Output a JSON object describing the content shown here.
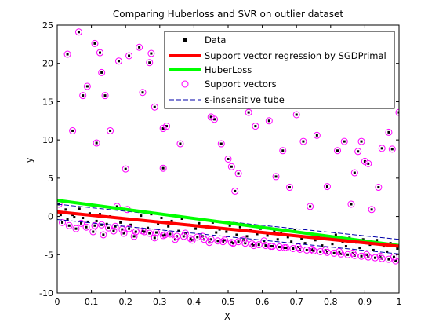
{
  "chart_data": {
    "type": "scatter",
    "title": "Comparing Huberloss and SVR on outlier dataset",
    "xlabel": "X",
    "ylabel": "y",
    "xlim": [
      0,
      1
    ],
    "ylim": [
      -10,
      25
    ],
    "xticks": [
      0,
      0.1,
      0.2,
      0.3,
      0.4,
      0.5,
      0.6,
      0.7,
      0.8,
      0.9,
      1
    ],
    "xtick_labels": [
      "0",
      "0.1",
      "0.2",
      "0.3",
      "0.4",
      "0.5",
      "0.6",
      "0.7",
      "0.8",
      "0.9",
      "1"
    ],
    "yticks": [
      -10,
      -5,
      0,
      5,
      10,
      15,
      20,
      25
    ],
    "ytick_labels": [
      "-10",
      "-5",
      "0",
      "5",
      "10",
      "15",
      "20",
      "25"
    ],
    "grid": false,
    "legend_position": "top-right",
    "legend": [
      {
        "label": "Data",
        "marker": "dot",
        "color": "#000000"
      },
      {
        "label": "Support vector regression by SGDPrimal",
        "marker": "line",
        "color": "#ff0000"
      },
      {
        "label": "HuberLoss",
        "marker": "line",
        "color": "#00ff00"
      },
      {
        "label": "Support vectors",
        "marker": "circle",
        "color": "#ff00ff"
      },
      {
        "label": "ε-insensitive tube",
        "marker": "dashed",
        "color": "#0000aa"
      }
    ],
    "lines": {
      "svr": {
        "x": [
          0,
          1
        ],
        "y": [
          0.6,
          -3.9
        ],
        "color": "#ff0000"
      },
      "huber": {
        "x": [
          0,
          1
        ],
        "y": [
          2.1,
          -3.8
        ],
        "color": "#00ff00"
      },
      "tube_upper": {
        "x": [
          0,
          1
        ],
        "y": [
          1.6,
          -3.0
        ],
        "color": "#0000aa"
      },
      "tube_lower": {
        "x": [
          0,
          1
        ],
        "y": [
          -0.4,
          -4.9
        ],
        "color": "#0000aa"
      }
    },
    "outliers": {
      "x": [
        0.03,
        0.045,
        0.063,
        0.075,
        0.088,
        0.11,
        0.115,
        0.125,
        0.13,
        0.14,
        0.155,
        0.18,
        0.2,
        0.21,
        0.24,
        0.25,
        0.27,
        0.275,
        0.285,
        0.31,
        0.31,
        0.32,
        0.36,
        0.38,
        0.39,
        0.45,
        0.46,
        0.48,
        0.5,
        0.51,
        0.52,
        0.53,
        0.56,
        0.58,
        0.62,
        0.64,
        0.66,
        0.68,
        0.7,
        0.72,
        0.74,
        0.76,
        0.79,
        0.82,
        0.84,
        0.86,
        0.87,
        0.88,
        0.89,
        0.9,
        0.91,
        0.92,
        0.94,
        0.95,
        0.97,
        0.98,
        1.0
      ],
      "y": [
        21.2,
        11.2,
        24.1,
        15.8,
        17.0,
        22.6,
        9.6,
        21.4,
        18.8,
        15.8,
        11.2,
        20.3,
        6.2,
        21.0,
        22.1,
        16.2,
        20.1,
        21.3,
        14.3,
        11.5,
        6.3,
        11.8,
        9.5,
        19.8,
        20.6,
        13.0,
        12.7,
        9.5,
        7.5,
        6.5,
        3.3,
        5.6,
        13.6,
        11.8,
        12.5,
        5.2,
        8.6,
        3.8,
        13.3,
        9.8,
        1.3,
        10.6,
        3.9,
        8.6,
        9.8,
        1.6,
        5.7,
        8.5,
        9.8,
        7.2,
        6.9,
        0.9,
        3.8,
        8.9,
        11.0,
        8.8,
        13.6
      ]
    },
    "inliers": {
      "x": [
        0.005,
        0.015,
        0.025,
        0.035,
        0.045,
        0.055,
        0.065,
        0.075,
        0.085,
        0.095,
        0.105,
        0.115,
        0.125,
        0.135,
        0.145,
        0.155,
        0.165,
        0.175,
        0.185,
        0.195,
        0.205,
        0.215,
        0.225,
        0.235,
        0.245,
        0.255,
        0.265,
        0.275,
        0.285,
        0.295,
        0.305,
        0.315,
        0.325,
        0.335,
        0.345,
        0.355,
        0.365,
        0.375,
        0.385,
        0.395,
        0.405,
        0.415,
        0.425,
        0.435,
        0.445,
        0.455,
        0.465,
        0.475,
        0.485,
        0.495,
        0.505,
        0.515,
        0.525,
        0.535,
        0.545,
        0.555,
        0.565,
        0.575,
        0.585,
        0.595,
        0.605,
        0.615,
        0.625,
        0.635,
        0.645,
        0.655,
        0.665,
        0.675,
        0.685,
        0.695,
        0.705,
        0.715,
        0.725,
        0.735,
        0.745,
        0.755,
        0.765,
        0.775,
        0.785,
        0.795,
        0.805,
        0.815,
        0.825,
        0.835,
        0.845,
        0.855,
        0.865,
        0.875,
        0.885,
        0.895,
        0.905,
        0.915,
        0.925,
        0.935,
        0.945,
        0.955,
        0.965,
        0.975,
        0.985,
        0.995,
        0.01,
        0.03,
        0.05,
        0.07,
        0.09,
        0.11,
        0.13,
        0.15,
        0.17,
        0.19,
        0.21,
        0.23,
        0.25,
        0.27,
        0.29,
        0.31,
        0.33,
        0.35,
        0.37,
        0.39,
        0.41,
        0.43,
        0.45,
        0.47,
        0.49,
        0.51,
        0.53,
        0.55,
        0.57,
        0.59,
        0.61,
        0.63,
        0.65,
        0.67,
        0.69,
        0.71,
        0.73,
        0.75,
        0.77,
        0.79,
        0.81,
        0.83,
        0.85,
        0.87,
        0.89,
        0.91,
        0.93,
        0.95,
        0.97,
        0.99
      ],
      "y": [
        1.6,
        -0.8,
        0.9,
        -1.2,
        0.2,
        -1.6,
        1.0,
        -0.2,
        -1.4,
        0.4,
        -2.0,
        -0.6,
        0.3,
        -2.4,
        -1.0,
        0.0,
        -1.9,
        1.3,
        -0.8,
        -2.2,
        0.9,
        -1.1,
        -2.6,
        -0.5,
        0.1,
        -2.0,
        -1.5,
        0.3,
        -2.8,
        -1.0,
        -0.2,
        -2.4,
        -1.3,
        -0.6,
        -3.0,
        -1.9,
        -0.3,
        -2.2,
        -1.1,
        -3.1,
        -1.6,
        -0.9,
        -2.6,
        -1.4,
        -3.4,
        -0.8,
        -2.1,
        -1.7,
        -3.3,
        -2.0,
        -1.2,
        -3.5,
        -2.4,
        -1.4,
        -3.1,
        -2.6,
        -1.8,
        -3.8,
        -2.3,
        -1.6,
        -3.2,
        -2.5,
        -3.9,
        -1.9,
        -3.0,
        -2.2,
        -4.1,
        -2.7,
        -3.3,
        -1.8,
        -4.0,
        -2.9,
        -3.5,
        -2.2,
        -4.3,
        -3.1,
        -2.5,
        -3.8,
        -4.4,
        -2.9,
        -3.6,
        -2.4,
        -4.6,
        -3.3,
        -3.9,
        -2.8,
        -4.8,
        -3.4,
        -4.1,
        -3.0,
        -5.0,
        -3.7,
        -4.4,
        -3.1,
        -5.2,
        -3.9,
        -4.6,
        -3.5,
        -5.3,
        -4.2,
        0.2,
        -0.4,
        -0.1,
        -0.9,
        -0.7,
        -1.2,
        -1.1,
        -1.5,
        -1.3,
        -1.7,
        -1.6,
        -2.0,
        -1.9,
        -2.2,
        -2.1,
        -2.5,
        -2.3,
        -2.6,
        -2.6,
        -2.9,
        -2.7,
        -3.0,
        -3.0,
        -3.2,
        -3.1,
        -3.4,
        -3.3,
        -3.5,
        -3.6,
        -3.7,
        -3.8,
        -3.9,
        -4.0,
        -4.1,
        -4.2,
        -4.3,
        -4.4,
        -4.5,
        -4.6,
        -4.7,
        -4.8,
        -4.9,
        -5.0,
        -5.1,
        -5.2,
        -5.3,
        -5.4,
        -5.5,
        -5.6,
        -5.8
      ]
    }
  }
}
